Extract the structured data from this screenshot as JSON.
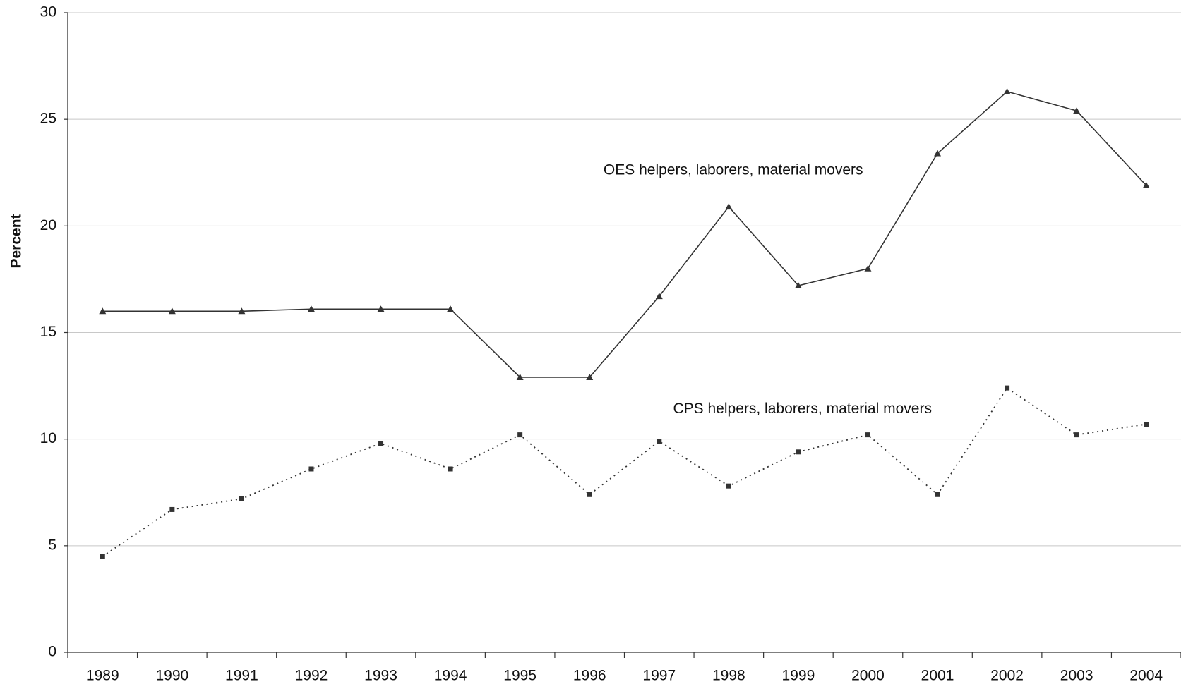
{
  "chart_data": {
    "type": "line",
    "y_label": "Percent",
    "categories": [
      "1989",
      "1990",
      "1991",
      "1992",
      "1993",
      "1994",
      "1995",
      "1996",
      "1997",
      "1998",
      "1999",
      "2000",
      "2001",
      "2002",
      "2003",
      "2004"
    ],
    "series": [
      {
        "name": "OES helpers, laborers, material movers",
        "color": "#333333",
        "marker": "triangle",
        "line_style": "solid",
        "values": [
          16.0,
          16.0,
          16.0,
          16.1,
          16.1,
          16.1,
          12.9,
          12.9,
          16.7,
          20.9,
          17.2,
          18.0,
          23.4,
          26.3,
          25.4,
          21.9
        ]
      },
      {
        "name": "CPS helpers, laborers, material movers",
        "color": "#333333",
        "marker": "square",
        "line_style": "dotted",
        "values": [
          4.5,
          6.7,
          7.2,
          8.6,
          9.8,
          8.6,
          10.2,
          7.4,
          9.9,
          7.8,
          9.4,
          10.2,
          7.4,
          12.4,
          10.2,
          10.7
        ]
      }
    ],
    "ylim": [
      0,
      30
    ],
    "yticks": [
      0,
      5,
      10,
      15,
      20,
      25,
      30
    ],
    "grid": true
  }
}
